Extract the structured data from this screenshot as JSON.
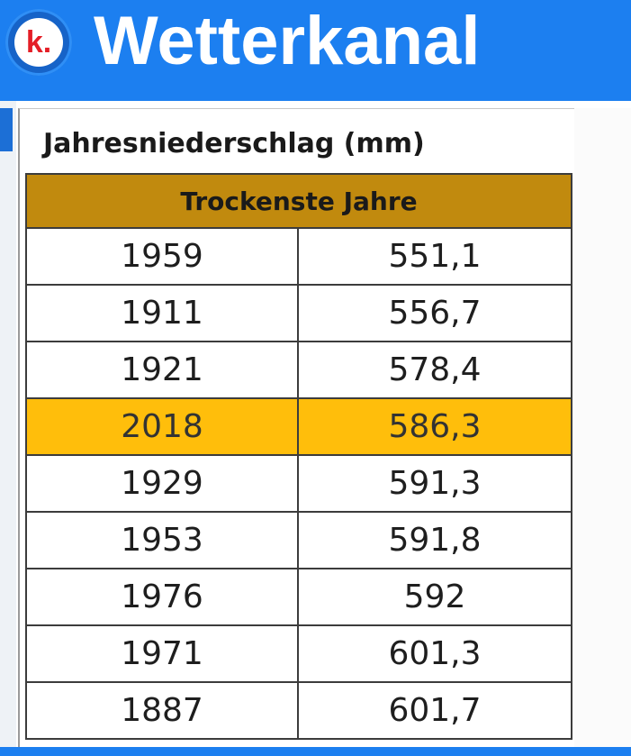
{
  "header": {
    "logo_letter": "k.",
    "brand": "Wetterkanal"
  },
  "table": {
    "title": "Jahresniederschlag (mm)",
    "section_header": "Trockenste Jahre",
    "rows": [
      {
        "year": "1959",
        "value": "551,1"
      },
      {
        "year": "1911",
        "value": "556,7"
      },
      {
        "year": "1921",
        "value": "578,4"
      },
      {
        "year": "2018",
        "value": "586,3",
        "highlighted": true
      },
      {
        "year": "1929",
        "value": "591,3"
      },
      {
        "year": "1953",
        "value": "591,8"
      },
      {
        "year": "1976",
        "value": "592"
      },
      {
        "year": "1971",
        "value": "601,3"
      },
      {
        "year": "1887",
        "value": "601,7"
      }
    ]
  },
  "colors": {
    "banner": "#1c7ff0",
    "logo_letter": "#e41e26",
    "section_header": "#c18a0e",
    "highlight_row": "#ffbe0b"
  }
}
